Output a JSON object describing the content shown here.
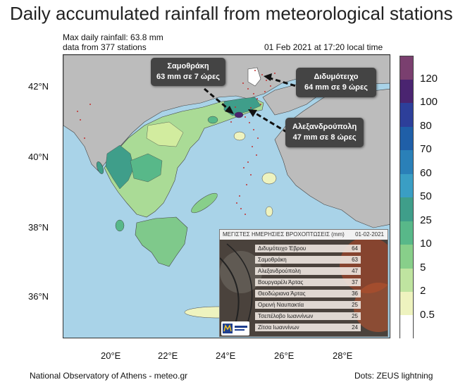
{
  "title": "Daily accumulated rainfall from meteorological stations",
  "meta": {
    "max_line": "Max daily rainfall: 63.8 mm",
    "stations_line": "data from 377 stations",
    "date_line": "01 Feb 2021 at 17:20 local time"
  },
  "axes": {
    "lat_labels": [
      "42°N",
      "40°N",
      "38°N",
      "36°N"
    ],
    "lon_labels": [
      "20°E",
      "22°E",
      "24°E",
      "26°E",
      "28°E"
    ]
  },
  "callouts": [
    {
      "line1": "Σαμοθράκη",
      "line2": "63 mm σε 7 ώρες"
    },
    {
      "line1": "Διδυμότειχο",
      "line2": "64 mm σε 9 ώρες"
    },
    {
      "line1": "Αλεξανδρούπολη",
      "line2": "47 mm σε 8 ώρες"
    }
  ],
  "colorbar": {
    "labels": [
      "120",
      "100",
      "80",
      "70",
      "60",
      "50",
      "25",
      "10",
      "5",
      "2",
      "0.5"
    ],
    "colors": [
      "#7a3f6f",
      "#4a2470",
      "#2d3f9a",
      "#1f5fa8",
      "#2a80b8",
      "#3a9ec4",
      "#3f9e8a",
      "#58b889",
      "#88cf8a",
      "#bfe4a0",
      "#eef3bf",
      "#ffffff"
    ]
  },
  "inset": {
    "header": "ΜΕΓΙΣΤΕΣ ΗΜΕΡΗΣΙΕΣ ΒΡΟΧΟΠΤΩΣΕΙΣ (mm)",
    "date": "01-02-2021",
    "rows": [
      {
        "name": "Διδυμότειχο Έβρου",
        "value": "64"
      },
      {
        "name": "Σαμοθράκη",
        "value": "63"
      },
      {
        "name": "Αλεξανδρούπολη",
        "value": "47"
      },
      {
        "name": "Βουργαρέλι Άρτας",
        "value": "37"
      },
      {
        "name": "Θεοδώριανα Άρτας",
        "value": "36"
      },
      {
        "name": "Ορεινή Ναυπακτία",
        "value": "25"
      },
      {
        "name": "Τσεπέλοβο Ιωαννίνων",
        "value": "25"
      },
      {
        "name": "Ζίτσα Ιωαννίνων",
        "value": "24"
      }
    ]
  },
  "footer": {
    "left": "National Observatory of Athens - meteo.gr",
    "right": "Dots: ZEUS lightning"
  }
}
